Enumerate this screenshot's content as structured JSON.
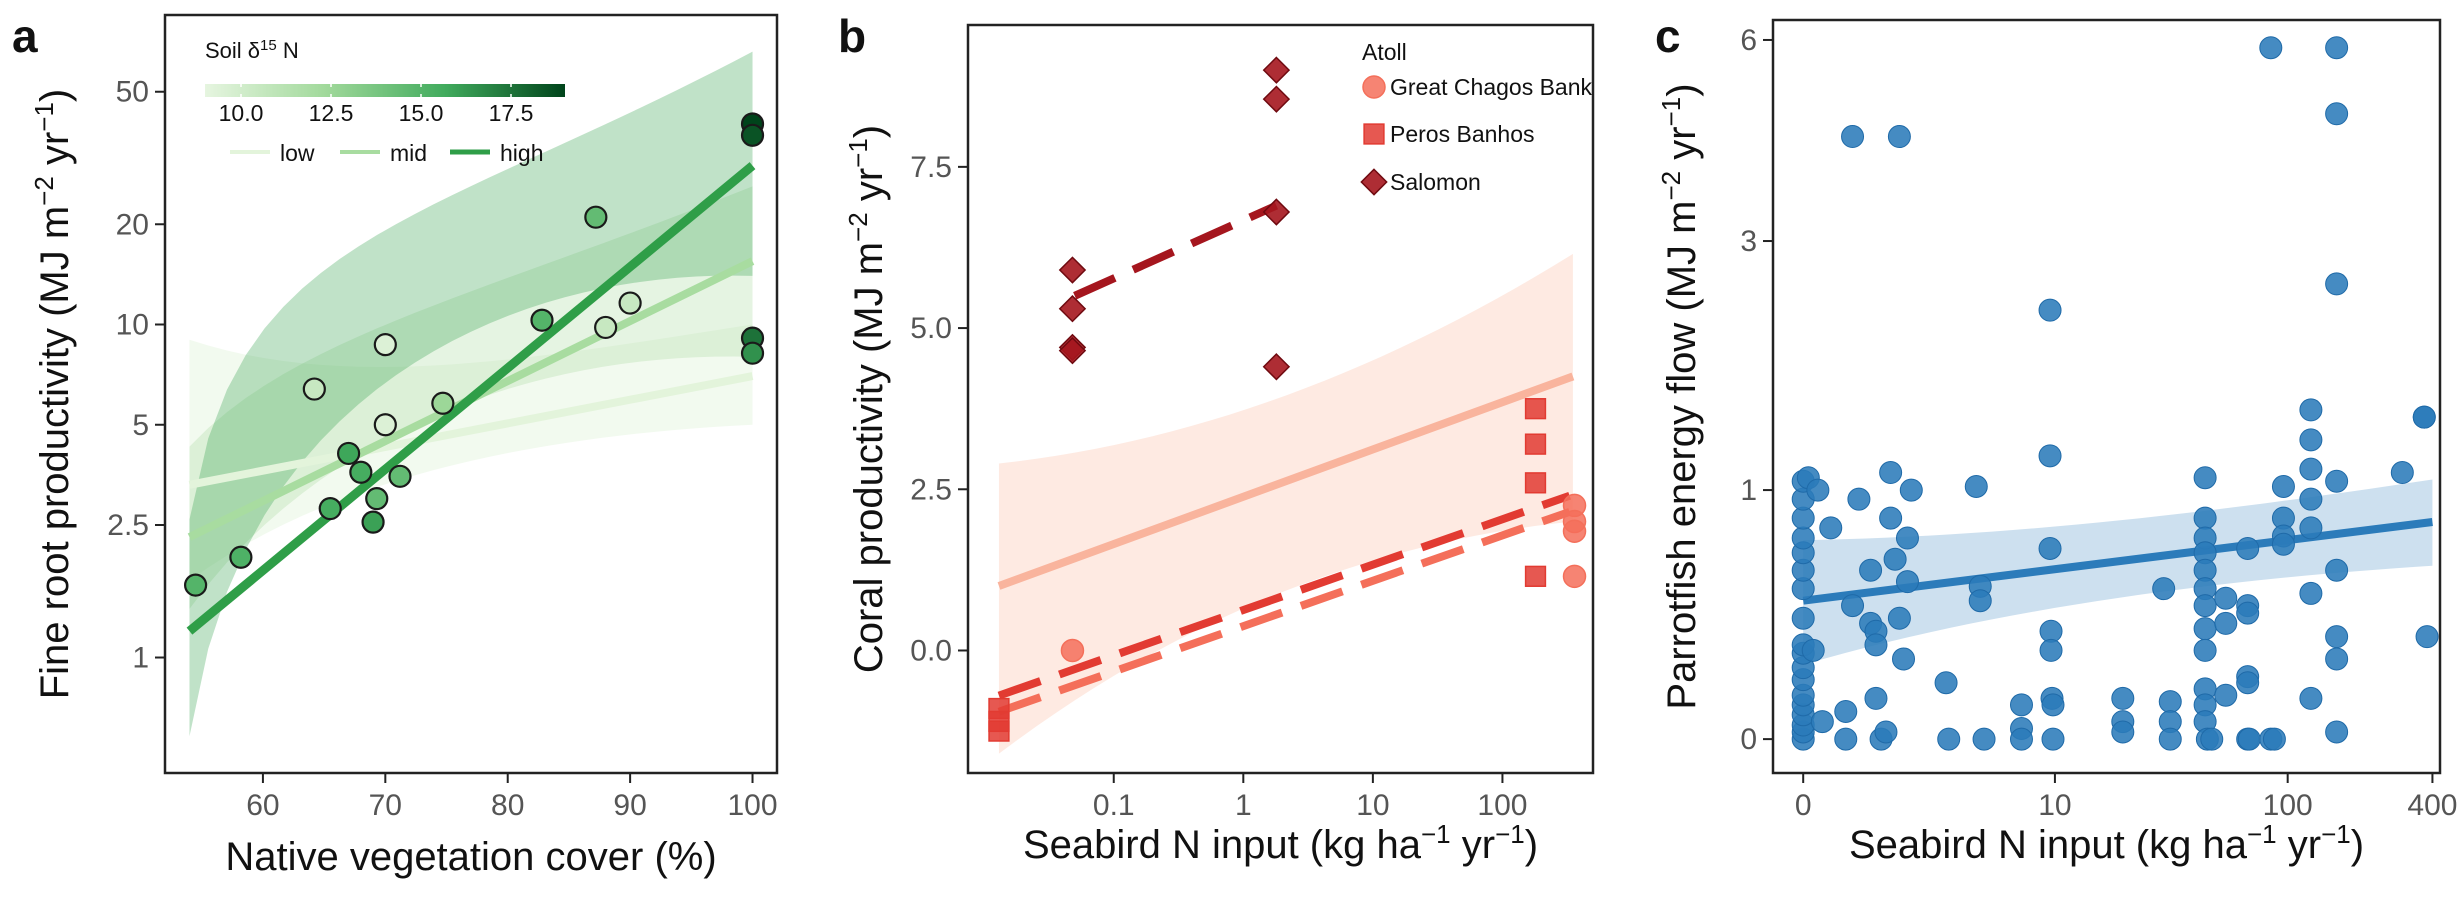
{
  "chart_data": [
    {
      "type": "scatter",
      "panel_label": "a",
      "xlabel": "Native vegetation cover (%)",
      "ylabel_main": "Fine root productivity (MJ m",
      "ylabel_exp1": "−2",
      "ylabel_mid": " yr",
      "ylabel_exp2": "−1",
      "ylabel_end": ")",
      "x_scale": "linear",
      "y_scale": "log",
      "xlim": [
        52,
        102
      ],
      "ylim": [
        0.45,
        85
      ],
      "x_ticks": [
        "60",
        "70",
        "80",
        "90",
        "100"
      ],
      "y_ticks": [
        "1",
        "2.5",
        "5",
        "10",
        "20",
        "50"
      ],
      "grid": false,
      "legend": {
        "placement": "top-left",
        "colorbar_title": "Soil δ",
        "colorbar_sup": "15",
        "colorbar_title_end": " N",
        "colorbar_range": [
          9.0,
          19.0
        ],
        "colorbar_ticks": [
          "10.0",
          "12.5",
          "15.0",
          "17.5"
        ],
        "line_entries": [
          "low",
          "mid",
          "high"
        ],
        "colors": [
          "#e6f5e0",
          "#a1d99b",
          "#41ab5d",
          "#00441b"
        ]
      },
      "points": [
        {
          "x": 54.5,
          "y": 1.65,
          "c": 15.0
        },
        {
          "x": 58.2,
          "y": 2.0,
          "c": 15.2
        },
        {
          "x": 64.2,
          "y": 6.4,
          "c": 10.5
        },
        {
          "x": 65.5,
          "y": 2.8,
          "c": 15.5
        },
        {
          "x": 67.0,
          "y": 4.1,
          "c": 15.8
        },
        {
          "x": 68.0,
          "y": 3.6,
          "c": 15.5
        },
        {
          "x": 69.0,
          "y": 2.55,
          "c": 16.0
        },
        {
          "x": 69.3,
          "y": 3.0,
          "c": 14.5
        },
        {
          "x": 70.0,
          "y": 8.7,
          "c": 9.5
        },
        {
          "x": 70.0,
          "y": 5.0,
          "c": 9.5
        },
        {
          "x": 71.2,
          "y": 3.5,
          "c": 14.5
        },
        {
          "x": 74.7,
          "y": 5.8,
          "c": 12.5
        },
        {
          "x": 82.8,
          "y": 10.3,
          "c": 15.0
        },
        {
          "x": 87.2,
          "y": 21.0,
          "c": 14.5
        },
        {
          "x": 88.0,
          "y": 9.8,
          "c": 10.5
        },
        {
          "x": 90.0,
          "y": 11.6,
          "c": 10.5
        },
        {
          "x": 100.0,
          "y": 40.0,
          "c": 19.0
        },
        {
          "x": 100.0,
          "y": 37.0,
          "c": 18.5
        },
        {
          "x": 100.0,
          "y": 9.1,
          "c": 17.5
        },
        {
          "x": 100.0,
          "y": 8.2,
          "c": 16.5
        }
      ],
      "fits": [
        {
          "name": "low",
          "x": [
            54,
            100
          ],
          "y": [
            3.3,
            7.0
          ],
          "band_lo": [
            1.7,
            5.0
          ],
          "band_hi": [
            9.0,
            10.0
          ],
          "color": "#e3f4db"
        },
        {
          "name": "mid",
          "x": [
            54,
            100
          ],
          "y": [
            2.3,
            15.5
          ],
          "band_lo": [
            1.4,
            8.0
          ],
          "band_hi": [
            4.3,
            26.0
          ],
          "color": "#a8dca0"
        },
        {
          "name": "high",
          "x": [
            54,
            100
          ],
          "y": [
            1.2,
            30.0
          ],
          "band_lo": [
            0.58,
            14.0
          ],
          "band_hi": [
            2.6,
            66.0
          ],
          "color": "#2f9e48"
        }
      ]
    },
    {
      "type": "scatter",
      "panel_label": "b",
      "xlabel_main": "Seabird N input (kg ha",
      "xlabel_exp1": "−1",
      "xlabel_mid": " yr",
      "xlabel_exp2": "−1",
      "xlabel_end": ")",
      "ylabel_main": "Coral productivity (MJ m",
      "ylabel_exp1": "−2",
      "ylabel_mid": " yr",
      "ylabel_exp2": "−1",
      "ylabel_end": ")",
      "x_scale": "log",
      "y_scale": "linear",
      "xlim": [
        0.0075,
        500
      ],
      "ylim": [
        -1.9,
        9.7
      ],
      "x_ticks": [
        {
          "v": 0.1,
          "label": "0.1"
        },
        {
          "v": 1,
          "label": "1"
        },
        {
          "v": 10,
          "label": "10"
        },
        {
          "v": 100,
          "label": "100"
        }
      ],
      "y_ticks": [
        "0.0",
        "2.5",
        "5.0",
        "7.5"
      ],
      "grid": false,
      "legend": {
        "placement": "top-right",
        "title": "Atoll",
        "entries": [
          "Great Chagos Bank",
          "Peros Banhos",
          "Salomon"
        ]
      },
      "series": [
        {
          "name": "Great Chagos Bank",
          "marker": "circle",
          "color": "#f46f5a",
          "points": [
            [
              0.048,
              0.0
            ],
            [
              360,
              2.25
            ],
            [
              360,
              2.0
            ],
            [
              360,
              1.85
            ],
            [
              360,
              1.15
            ]
          ],
          "fit_x": [
            0.013,
            330
          ],
          "fit_y": [
            -0.95,
            2.15
          ]
        },
        {
          "name": "Peros Banhos",
          "marker": "square",
          "color": "#e23b32",
          "points": [
            [
              0.013,
              -0.9
            ],
            [
              0.013,
              -1.1
            ],
            [
              0.013,
              -1.25
            ],
            [
              180,
              3.75
            ],
            [
              180,
              3.2
            ],
            [
              180,
              2.6
            ],
            [
              180,
              1.15
            ]
          ],
          "fit_x": [
            0.013,
            330
          ],
          "fit_y": [
            -0.7,
            2.4
          ]
        },
        {
          "name": "Salomon",
          "marker": "diamond",
          "color": "#a5161e",
          "points": [
            [
              0.048,
              5.9
            ],
            [
              0.048,
              5.3
            ],
            [
              0.048,
              4.7
            ],
            [
              0.048,
              4.65
            ],
            [
              1.8,
              9.0
            ],
            [
              1.8,
              8.55
            ],
            [
              1.8,
              6.8
            ],
            [
              1.8,
              4.4
            ]
          ],
          "fit_x": [
            0.05,
            1.8
          ],
          "fit_y": [
            5.5,
            6.9
          ]
        }
      ],
      "overall_fit": {
        "x": [
          0.013,
          350
        ],
        "y": [
          1.0,
          4.25
        ],
        "band_lo": [
          -1.6,
          2.0
        ],
        "band_hi": [
          2.9,
          6.15
        ],
        "color": "#f9b49d"
      }
    },
    {
      "type": "scatter",
      "panel_label": "c",
      "xlabel_main": "Seabird N input (kg ha",
      "xlabel_exp1": "−1",
      "xlabel_mid": " yr",
      "xlabel_exp2": "−1",
      "xlabel_end": ")",
      "ylabel_main": "Parrotfish energy flow (MJ m",
      "ylabel_exp1": "−2",
      "ylabel_mid": " yr",
      "ylabel_exp2": "−1",
      "ylabel_end": ")",
      "x_scale": "log1p",
      "y_scale": "log1p",
      "xlim": [
        -0.25,
        430
      ],
      "ylim": [
        -0.09,
        6.4
      ],
      "x_ticks": [
        {
          "v": 0,
          "label": "0"
        },
        {
          "v": 10,
          "label": "10"
        },
        {
          "v": 100,
          "label": "100"
        },
        {
          "v": 400,
          "label": "400"
        }
      ],
      "y_ticks": [
        {
          "v": 0,
          "label": "0"
        },
        {
          "v": 1,
          "label": "1"
        },
        {
          "v": 3,
          "label": "3"
        },
        {
          "v": 6,
          "label": "6"
        }
      ],
      "grid": false,
      "color": "#2b7bba",
      "points": [
        [
          0,
          0
        ],
        [
          0,
          0.02
        ],
        [
          0,
          0.04
        ],
        [
          0,
          0.07
        ],
        [
          0,
          0.1
        ],
        [
          0,
          0.13
        ],
        [
          0,
          0.18
        ],
        [
          0,
          0.22
        ],
        [
          0,
          0.27
        ],
        [
          0,
          0.3
        ],
        [
          0,
          0.4
        ],
        [
          0,
          0.52
        ],
        [
          0,
          0.6
        ],
        [
          0,
          0.68
        ],
        [
          0,
          0.75
        ],
        [
          0,
          0.85
        ],
        [
          0,
          0.95
        ],
        [
          0,
          1.05
        ],
        [
          0.05,
          1.07
        ],
        [
          0.15,
          1.0
        ],
        [
          0.1,
          0.28
        ],
        [
          0.2,
          0.05
        ],
        [
          0.3,
          0.8
        ],
        [
          0.5,
          0
        ],
        [
          0.5,
          0.08
        ],
        [
          0.6,
          0.45
        ],
        [
          0.6,
          4.35
        ],
        [
          0.7,
          0.95
        ],
        [
          0.9,
          0.6
        ],
        [
          0.9,
          0.38
        ],
        [
          1.0,
          0.35
        ],
        [
          1.0,
          0.3
        ],
        [
          1.0,
          0.12
        ],
        [
          1.1,
          0
        ],
        [
          1.2,
          0.02
        ],
        [
          1.3,
          1.1
        ],
        [
          1.3,
          0.85
        ],
        [
          1.4,
          0.65
        ],
        [
          1.5,
          0.4
        ],
        [
          1.5,
          4.35
        ],
        [
          1.6,
          0.25
        ],
        [
          1.7,
          0.75
        ],
        [
          1.7,
          0.55
        ],
        [
          1.8,
          1.0
        ],
        [
          2.9,
          0.17
        ],
        [
          3.0,
          0
        ],
        [
          4.2,
          1.02
        ],
        [
          4.4,
          0.53
        ],
        [
          4.4,
          0.47
        ],
        [
          4.6,
          0
        ],
        [
          7.0,
          0.1
        ],
        [
          7.0,
          0.03
        ],
        [
          7.0,
          0
        ],
        [
          9.5,
          2.3
        ],
        [
          9.5,
          1.2
        ],
        [
          9.5,
          0.7
        ],
        [
          9.6,
          0.35
        ],
        [
          9.6,
          0.28
        ],
        [
          9.7,
          0.12
        ],
        [
          9.8,
          0.1
        ],
        [
          9.8,
          0
        ],
        [
          20,
          0.12
        ],
        [
          20,
          0.05
        ],
        [
          20,
          0.02
        ],
        [
          30,
          0.52
        ],
        [
          32,
          0.11
        ],
        [
          32,
          0.05
        ],
        [
          32,
          0
        ],
        [
          45,
          1.07
        ],
        [
          45,
          0.85
        ],
        [
          45,
          0.75
        ],
        [
          45,
          0.68
        ],
        [
          45,
          0.6
        ],
        [
          45,
          0.52
        ],
        [
          45,
          0.45
        ],
        [
          45,
          0.36
        ],
        [
          45,
          0.28
        ],
        [
          45,
          0.15
        ],
        [
          45,
          0.1
        ],
        [
          45,
          0.05
        ],
        [
          46,
          0
        ],
        [
          48,
          0
        ],
        [
          55,
          0.48
        ],
        [
          55,
          0.38
        ],
        [
          55,
          0.13
        ],
        [
          68,
          0.7
        ],
        [
          68,
          0.45
        ],
        [
          68,
          0.42
        ],
        [
          68,
          0.19
        ],
        [
          68,
          0.17
        ],
        [
          68,
          0
        ],
        [
          69,
          0
        ],
        [
          85,
          5.85
        ],
        [
          85,
          0
        ],
        [
          88,
          0
        ],
        [
          96,
          1.02
        ],
        [
          96,
          0.85
        ],
        [
          96,
          0.76
        ],
        [
          96,
          0.72
        ],
        [
          125,
          1.5
        ],
        [
          125,
          1.3
        ],
        [
          125,
          1.12
        ],
        [
          125,
          0.95
        ],
        [
          125,
          0.8
        ],
        [
          125,
          0.5
        ],
        [
          125,
          0.12
        ],
        [
          160,
          5.85
        ],
        [
          160,
          4.7
        ],
        [
          160,
          2.55
        ],
        [
          160,
          1.05
        ],
        [
          160,
          0.6
        ],
        [
          160,
          0.33
        ],
        [
          160,
          0.25
        ],
        [
          160,
          0.02
        ],
        [
          300,
          1.1
        ],
        [
          370,
          1.45
        ],
        [
          370,
          1.45
        ],
        [
          380,
          0.33
        ]
      ],
      "fit": {
        "x": [
          0,
          400
        ],
        "y": [
          0.47,
          0.83
        ],
        "band_lo": [
          0.23,
          0.62
        ],
        "band_hi": [
          0.74,
          1.06
        ],
        "band_color": "#bcd6ea"
      }
    }
  ]
}
